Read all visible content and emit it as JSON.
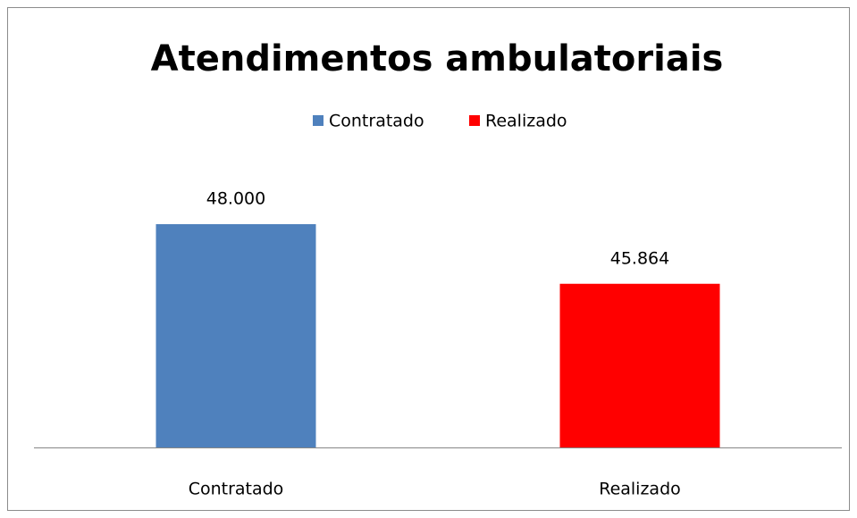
{
  "chart_data": {
    "type": "bar",
    "title": "Atendimentos ambulatoriais",
    "categories": [
      "Contratado",
      "Realizado"
    ],
    "values": [
      48000,
      45864
    ],
    "value_labels": [
      "48.000",
      "45.864"
    ],
    "colors": [
      "#4f81bd",
      "#ff0000"
    ],
    "ylim": [
      40000,
      50000
    ],
    "legend": "top",
    "grid": false
  }
}
